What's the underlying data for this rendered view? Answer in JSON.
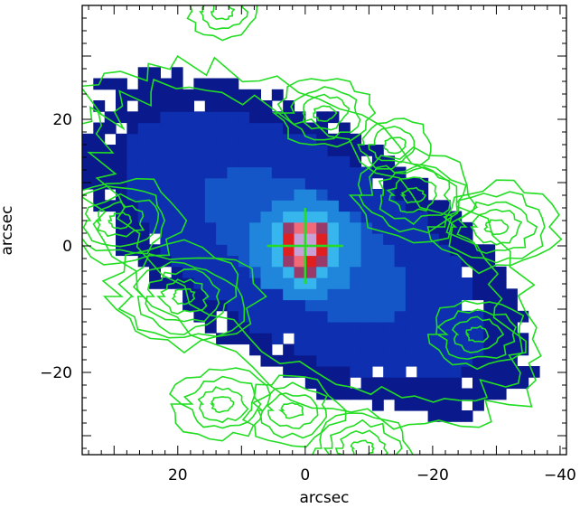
{
  "chart_data": {
    "type": "heatmap",
    "title": "",
    "xlabel": "arcsec",
    "ylabel": "arcsec",
    "xlim": [
      35,
      -41
    ],
    "ylim": [
      -33,
      38
    ],
    "x_ticks": [
      20,
      0,
      -20,
      -40
    ],
    "x_tick_labels": [
      "20",
      "0",
      "−20",
      "−40"
    ],
    "y_ticks": [
      20,
      0,
      -20
    ],
    "y_tick_labels": [
      "20",
      "0",
      "−20"
    ],
    "grid": false,
    "image": {
      "description_of_map": "pixelated intensity map, blue disk with bright red/pink nucleus at origin",
      "colormap": [
        "#0a1a8c",
        "#0d2fb0",
        "#1456c8",
        "#1f86dc",
        "#37b6ee",
        "#9a3a6a",
        "#e02020",
        "#f06a7a",
        "#c8a0d8"
      ],
      "peak_position": [
        0,
        0
      ]
    },
    "contours": {
      "color": "#22dd22",
      "regions": [
        {
          "center": [
            -30,
            3
          ],
          "levels": 5
        },
        {
          "center": [
            -27,
            -14
          ],
          "levels": 4
        },
        {
          "center": [
            -17,
            8
          ],
          "levels": 5
        },
        {
          "center": [
            -14,
            16
          ],
          "levels": 3
        },
        {
          "center": [
            -3,
            21
          ],
          "levels": 4
        },
        {
          "center": [
            29,
            4
          ],
          "levels": 5
        },
        {
          "center": [
            19,
            -8
          ],
          "levels": 6
        },
        {
          "center": [
            13,
            -25
          ],
          "levels": 4
        },
        {
          "center": [
            2,
            -26
          ],
          "levels": 4
        },
        {
          "center": [
            -9,
            -32
          ],
          "levels": 4
        },
        {
          "center": [
            13,
            37
          ],
          "levels": 3
        }
      ]
    },
    "marker": {
      "type": "cross",
      "center": [
        0,
        0
      ],
      "color": "#22dd22",
      "half_length_x": 6,
      "half_length_y": 6
    }
  }
}
